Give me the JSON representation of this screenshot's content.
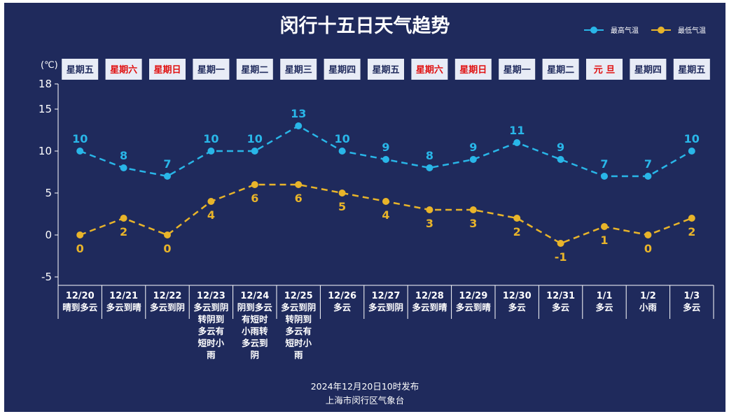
{
  "chart_data": {
    "type": "line",
    "title": "闵行十五日天气趋势",
    "ylabel": "(℃)",
    "ylim": [
      -5,
      18
    ],
    "yticks": [
      -5,
      0,
      5,
      10,
      15,
      18
    ],
    "categories": [
      "12/20",
      "12/21",
      "12/22",
      "12/23",
      "12/24",
      "12/25",
      "12/26",
      "12/27",
      "12/28",
      "12/29",
      "12/30",
      "12/31",
      "1/1",
      "1/2",
      "1/3"
    ],
    "weekdays": [
      "星期五",
      "星期六",
      "星期日",
      "星期一",
      "星期二",
      "星期三",
      "星期四",
      "星期五",
      "星期六",
      "星期日",
      "星期一",
      "星期二",
      "元 旦",
      "星期四",
      "星期五"
    ],
    "weekday_holiday": [
      false,
      true,
      true,
      false,
      false,
      false,
      false,
      false,
      true,
      true,
      false,
      false,
      true,
      false,
      false
    ],
    "weather": [
      [
        "晴到多云"
      ],
      [
        "多云到晴"
      ],
      [
        "多云到阴"
      ],
      [
        "多云到阴",
        "转阴到",
        "多云有",
        "短时小",
        "雨"
      ],
      [
        "阴到多云",
        "有短时",
        "小雨转",
        "多云到",
        "阴"
      ],
      [
        "多云到阴",
        "转阴到",
        "多云有",
        "短时小",
        "雨"
      ],
      [
        "多云"
      ],
      [
        "多云到阴"
      ],
      [
        "多云到晴"
      ],
      [
        "多云到晴"
      ],
      [
        "多云"
      ],
      [
        "多云"
      ],
      [
        "多云"
      ],
      [
        "小雨"
      ],
      [
        "多云"
      ]
    ],
    "series": [
      {
        "name": "最高气温",
        "color": "#29b6e8",
        "values": [
          10,
          8,
          7,
          10,
          10,
          13,
          10,
          9,
          8,
          9,
          11,
          9,
          7,
          7,
          10
        ]
      },
      {
        "name": "最低气温",
        "color": "#e8b42a",
        "values": [
          0,
          2,
          0,
          4,
          6,
          6,
          5,
          4,
          3,
          3,
          2,
          -1,
          1,
          0,
          2
        ]
      }
    ],
    "legend": "top-right",
    "grid": false
  },
  "colors": {
    "background": "#1f2a5c",
    "holiday_text": "#e01010",
    "weekday_text": "#1f2a5c",
    "axis": "#ffffff"
  },
  "footer": {
    "line1": "2024年12月20日10时发布",
    "line2": "上海市闵行区气象台"
  }
}
